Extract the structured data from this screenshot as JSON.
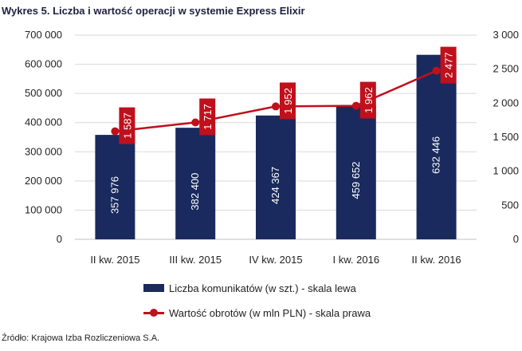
{
  "chart_data": {
    "type": "bar+line",
    "title": "Wykres 5. Liczba i wartość operacji w systemie Express Elixir",
    "categories": [
      "II kw. 2015",
      "III kw. 2015",
      "IV kw. 2015",
      "I kw. 2016",
      "II kw. 2016"
    ],
    "series": [
      {
        "name": "Liczba komunikatów (w szt.) - skala lewa",
        "type": "bar",
        "axis": "left",
        "color": "#1a2a5e",
        "values": [
          357976,
          382400,
          424367,
          459652,
          632446
        ],
        "labels": [
          "357 976",
          "382 400",
          "424 367",
          "459 652",
          "632 446"
        ]
      },
      {
        "name": "Wartość obrotów (w mln PLN) - skala prawa",
        "type": "line",
        "axis": "right",
        "color": "#c0101c",
        "values": [
          1587,
          1717,
          1952,
          1962,
          2477
        ],
        "labels": [
          "1 587",
          "1 717",
          "1 952",
          "1 962",
          "2 477"
        ]
      }
    ],
    "left_axis": {
      "min": 0,
      "max": 700000,
      "ticks": [
        0,
        100000,
        200000,
        300000,
        400000,
        500000,
        600000,
        700000
      ],
      "tick_labels": [
        "0",
        "100 000",
        "200 000",
        "300 000",
        "400 000",
        "500 000",
        "600 000",
        "700 000"
      ]
    },
    "right_axis": {
      "min": 0,
      "max": 3000,
      "ticks": [
        0,
        500,
        1000,
        1500,
        2000,
        2500,
        3000
      ],
      "tick_labels": [
        "0",
        "500",
        "1 000",
        "1 500",
        "2 000",
        "2 500",
        "3 000"
      ]
    },
    "grid": true,
    "legend_position": "bottom"
  },
  "source": "Źródło: Krajowa Izba Rozliczeniowa S.A."
}
